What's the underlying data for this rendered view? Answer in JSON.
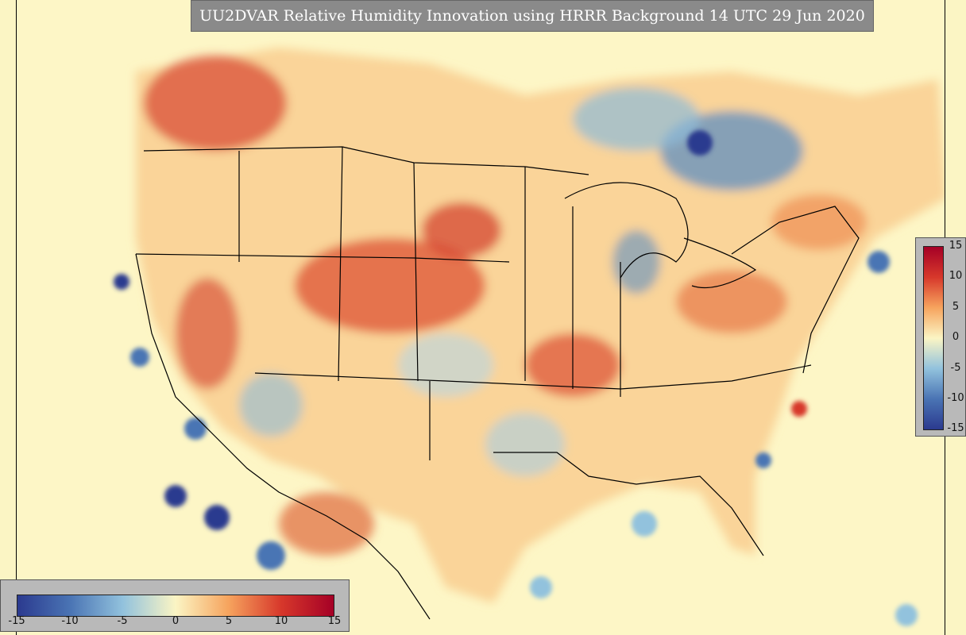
{
  "title": "UU2DVAR Relative Humidity Innovation using HRRR Background 14 UTC 29 Jun 2020",
  "variable": "Relative Humidity Innovation",
  "background_model": "HRRR",
  "analysis_system": "UU2DVAR",
  "valid_time": "14 UTC 29 Jun 2020",
  "colorbar": {
    "min": -15,
    "max": 15,
    "colors": {
      "neg15": "#2b3a8f",
      "neg10": "#4a74b4",
      "neg5": "#92c2dd",
      "zero": "#fbf5c4",
      "pos5": "#f6a45e",
      "pos10": "#d7382b",
      "pos15": "#a50026"
    },
    "bottom_ticks": [
      "-15",
      "-10",
      "-5",
      "0",
      "5",
      "10",
      "15"
    ],
    "right_ticks": [
      "15",
      "10",
      "5",
      "0",
      "-5",
      "-10",
      "-15"
    ]
  }
}
